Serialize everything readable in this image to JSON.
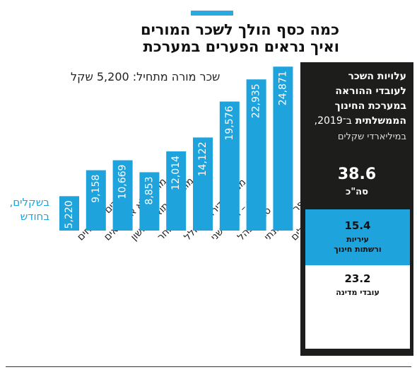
{
  "title_lines": [
    "כמה כסף הולך לשכר המורים",
    "ואיך נראים הפערים במערכת"
  ],
  "subtitle": "שכר מורה מתחיל: 5,200 שקל",
  "unit_lines": [
    "בשקלים,",
    "בחודש"
  ],
  "colors": {
    "accent": "#2aa8e0",
    "bar": "#1ea3dd",
    "panel": "#1d1d1b"
  },
  "chart_data": {
    "type": "bar",
    "categories": [
      "מורים מתמחים",
      "מורים לא אקדמאים",
      "מורים – תואר ראשון",
      "אחר",
      "ממוצע דירוגים כולל",
      "מורים – תואר שני",
      "סגני מנהל",
      "מנהלי חט\"ב בבית ספר שש שנתי",
      "מנהלים"
    ],
    "values": [
      5220,
      9158,
      10669,
      8853,
      12014,
      14122,
      19576,
      22935,
      24871
    ],
    "value_labels": [
      "5,220",
      "9,158",
      "10,669",
      "8,853",
      "12,014",
      "14,122",
      "19,576",
      "22,935",
      "24,871"
    ],
    "ylim": [
      0,
      25000
    ]
  },
  "panel": {
    "title_lines": [
      "עלויות השכר",
      "לעובדי ההוראה",
      "במערכת החינוך",
      "הממשלתית"
    ],
    "year_text": "ב־2019,",
    "subtitle": "במיליארדי שקלים",
    "total_value": "38.6",
    "total_label": "סה\"כ",
    "municipal_value": "15.4",
    "municipal_label_lines": [
      "עיריות",
      "ורשתות חינוך"
    ],
    "state_value": "23.2",
    "state_label": "עובדי מדינה"
  }
}
